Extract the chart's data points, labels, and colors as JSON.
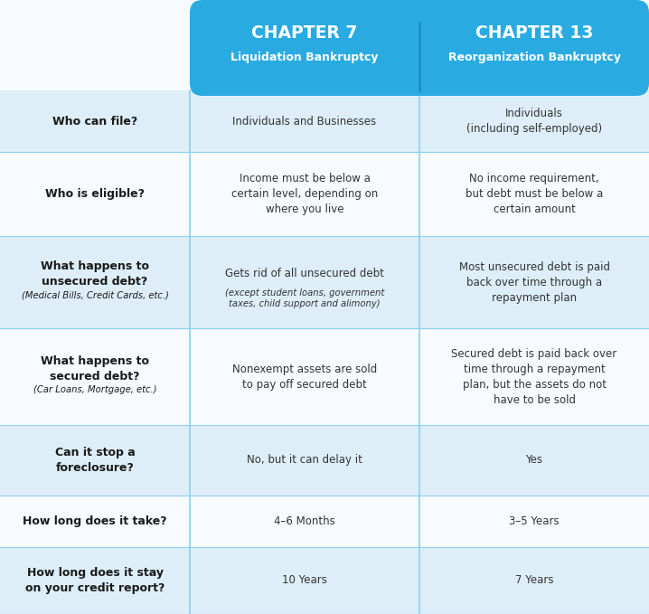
{
  "header_bg": "#29abe2",
  "header_text_color": "#ffffff",
  "col1_title": "CHAPTER 7",
  "col1_subtitle": "Liquidation Bankruptcy",
  "col2_title": "CHAPTER 13",
  "col2_subtitle": "Reorganization Bankruptcy",
  "row_bg_light": "#ddeef8",
  "row_bg_white": "#f7fbff",
  "row_label_color": "#1a1a1a",
  "cell_text_color": "#333333",
  "divider_color": "#8dcfee",
  "fig_bg": "#f7fbff",
  "rows": [
    {
      "label": "Who can file?",
      "label_sub": "",
      "col1": "Individuals and Businesses",
      "col1_italic": "",
      "col2": "Individuals\n(including self-employed)",
      "col2_italic": "",
      "bg": "light"
    },
    {
      "label": "Who is eligible?",
      "label_sub": "",
      "col1": "Income must be below a\ncertain level, depending on\nwhere you live",
      "col1_italic": "",
      "col2": "No income requirement,\nbut debt must be below a\ncertain amount",
      "col2_italic": "",
      "bg": "white"
    },
    {
      "label": "What happens to\nunsecured debt?",
      "label_sub": "(Medical Bills, Credit Cards, etc.)",
      "col1": "Gets rid of all unsecured debt",
      "col1_italic": "(except student loans, government\ntaxes, child support and alimony)",
      "col2": "Most unsecured debt is paid\nback over time through a\nrepayment plan",
      "col2_italic": "",
      "bg": "light"
    },
    {
      "label": "What happens to\nsecured debt?",
      "label_sub": "(Car Loans, Mortgage, etc.)",
      "col1": "Nonexempt assets are sold\nto pay off secured debt",
      "col1_italic": "",
      "col2": "Secured debt is paid back over\ntime through a repayment\nplan, but the assets do not\nhave to be sold",
      "col2_italic": "",
      "bg": "white"
    },
    {
      "label": "Can it stop a\nforeclosure?",
      "label_sub": "",
      "col1": "No, but it can delay it",
      "col1_italic": "",
      "col2": "Yes",
      "col2_italic": "",
      "bg": "light"
    },
    {
      "label": "How long does it take?",
      "label_sub": "",
      "col1": "4–6 Months",
      "col1_italic": "",
      "col2": "3–5 Years",
      "col2_italic": "",
      "bg": "white"
    },
    {
      "label": "How long does it stay\non your credit report?",
      "label_sub": "",
      "col1": "10 Years",
      "col1_italic": "",
      "col2": "7 Years",
      "col2_italic": "",
      "bg": "light"
    }
  ]
}
